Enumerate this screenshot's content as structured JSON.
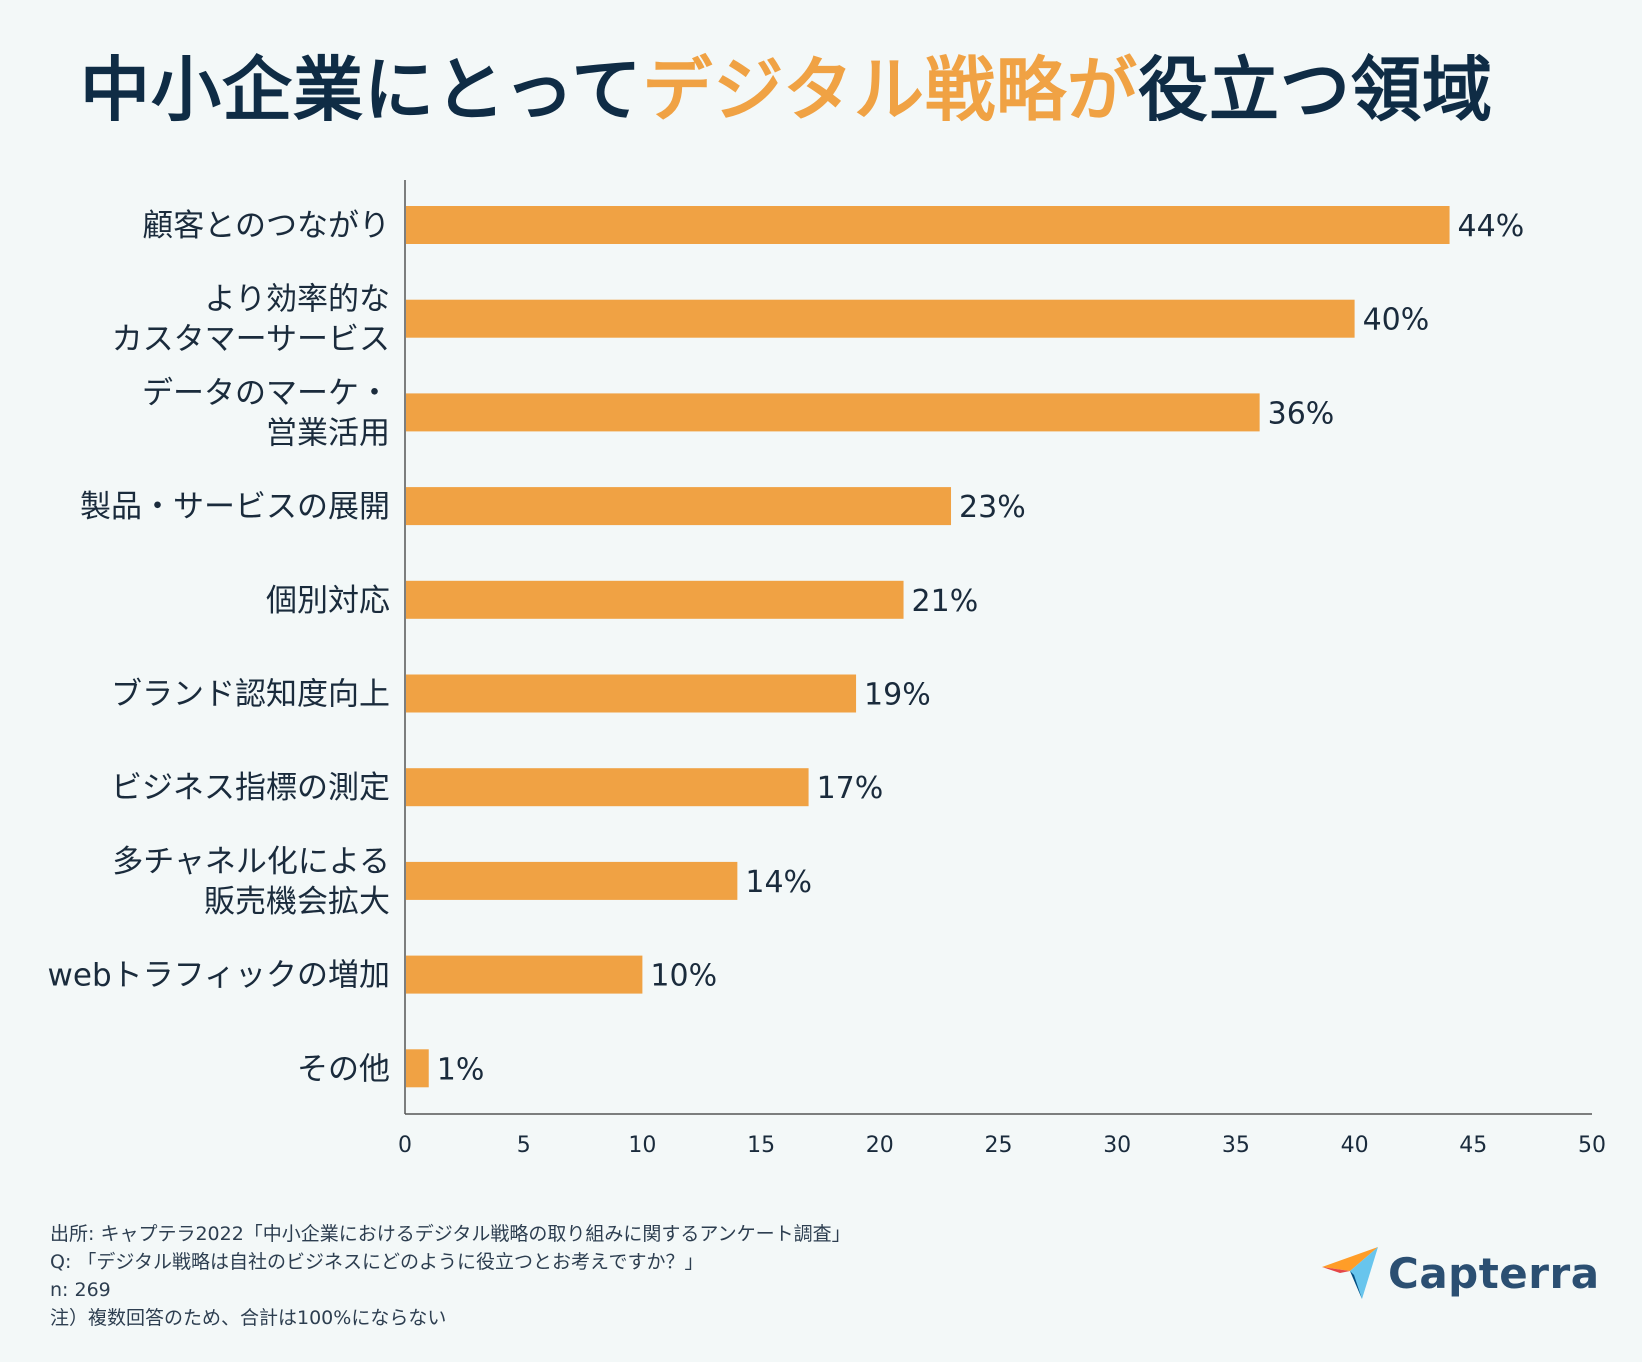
{
  "title": {
    "part1": "中小企業にとって",
    "part2": "デジタル戦略が",
    "part3": "役立つ領域"
  },
  "colors": {
    "bar": "#f0a244",
    "title_accent": "#f0a244",
    "title_dark": "#0f2c45",
    "axis": "#555555"
  },
  "chart_data": {
    "type": "bar",
    "orientation": "horizontal",
    "categories": [
      [
        "顧客とのつながり"
      ],
      [
        "より効率的な",
        "カスタマーサービス"
      ],
      [
        "データのマーケ・",
        "営業活用"
      ],
      [
        "製品・サービスの展開"
      ],
      [
        "個別対応"
      ],
      [
        "ブランド認知度向上"
      ],
      [
        "ビジネス指標の測定"
      ],
      [
        "多チャネル化による",
        "販売機会拡大"
      ],
      [
        "webトラフィックの増加"
      ],
      [
        "その他"
      ]
    ],
    "values": [
      44,
      40,
      36,
      23,
      21,
      19,
      17,
      14,
      10,
      1
    ],
    "value_labels": [
      "44%",
      "40%",
      "36%",
      "23%",
      "21%",
      "19%",
      "17%",
      "14%",
      "10%",
      "1%"
    ],
    "xlim": [
      0,
      50
    ],
    "xticks": [
      0,
      5,
      10,
      15,
      20,
      25,
      30,
      35,
      40,
      45,
      50
    ],
    "grid": false,
    "xlabel": "",
    "ylabel": ""
  },
  "notes": {
    "source": "出所: キャプテラ2022「中小企業におけるデジタル戦略の取り組みに関するアンケート調査」",
    "question": "Q: 「デジタル戦略は自社のビジネスにどのように役立つとお考えですか？」",
    "n": "n: 269",
    "note": "注）複数回答のため、合計は100%にならない"
  },
  "logo": {
    "text": "Capterra",
    "icon": "capterra-arrow-icon"
  }
}
